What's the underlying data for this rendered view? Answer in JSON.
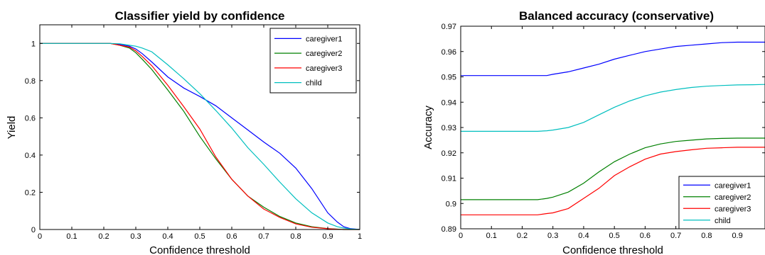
{
  "chart_data": [
    {
      "type": "line",
      "title": "Classifier yield by confidence",
      "xlabel": "Confidence threshold",
      "ylabel": "Yield",
      "xlim": [
        0,
        1
      ],
      "ylim": [
        0,
        1.1
      ],
      "xticks": [
        "0",
        "0.1",
        "0.2",
        "0.3",
        "0.4",
        "0.5",
        "0.6",
        "0.7",
        "0.8",
        "0.9",
        "1"
      ],
      "xtick_values": [
        0,
        0.1,
        0.2,
        0.3,
        0.4,
        0.5,
        0.6,
        0.7,
        0.8,
        0.9,
        1
      ],
      "yticks": [
        "0",
        "0.2",
        "0.4",
        "0.6",
        "0.8",
        "1"
      ],
      "ytick_values": [
        0,
        0.2,
        0.4,
        0.6,
        0.8,
        1
      ],
      "grid": false,
      "legend_position": "top-right",
      "x": [
        0,
        0.05,
        0.1,
        0.15,
        0.2,
        0.22,
        0.25,
        0.28,
        0.3,
        0.32,
        0.35,
        0.4,
        0.45,
        0.5,
        0.55,
        0.6,
        0.65,
        0.7,
        0.75,
        0.8,
        0.85,
        0.9,
        0.93,
        0.95,
        0.97,
        1
      ],
      "series": [
        {
          "name": "caregiver1",
          "color": "#0000ff",
          "values": [
            1,
            1,
            1,
            1,
            1,
            1,
            0.995,
            0.985,
            0.97,
            0.945,
            0.9,
            0.82,
            0.76,
            0.715,
            0.665,
            0.6,
            0.535,
            0.47,
            0.41,
            0.33,
            0.22,
            0.09,
            0.04,
            0.015,
            0.005,
            0
          ]
        },
        {
          "name": "caregiver2",
          "color": "#008000",
          "values": [
            1,
            1,
            1,
            1,
            1,
            1,
            0.99,
            0.975,
            0.95,
            0.915,
            0.86,
            0.75,
            0.635,
            0.5,
            0.38,
            0.27,
            0.18,
            0.12,
            0.07,
            0.035,
            0.015,
            0.005,
            0.002,
            0,
            0,
            0
          ]
        },
        {
          "name": "caregiver3",
          "color": "#ff0000",
          "values": [
            1,
            1,
            1,
            1,
            1,
            1,
            0.99,
            0.98,
            0.96,
            0.93,
            0.88,
            0.775,
            0.66,
            0.54,
            0.39,
            0.27,
            0.18,
            0.11,
            0.065,
            0.03,
            0.012,
            0.004,
            0.001,
            0,
            0,
            0
          ]
        },
        {
          "name": "child",
          "color": "#00bfbf",
          "values": [
            1,
            1,
            1,
            1,
            1,
            1,
            0.998,
            0.99,
            0.985,
            0.975,
            0.955,
            0.885,
            0.81,
            0.73,
            0.64,
            0.545,
            0.44,
            0.35,
            0.255,
            0.165,
            0.09,
            0.035,
            0.015,
            0.008,
            0.003,
            0
          ]
        }
      ]
    },
    {
      "type": "line",
      "title": "Balanced accuracy (conservative)",
      "xlabel": "Confidence threshold",
      "ylabel": "Accuracy",
      "xlim": [
        0,
        0.99
      ],
      "ylim": [
        0.89,
        0.97
      ],
      "xticks": [
        "0",
        "0.1",
        "0.2",
        "0.3",
        "0.4",
        "0.5",
        "0.6",
        "0.7",
        "0.8",
        "0.9"
      ],
      "xtick_values": [
        0,
        0.1,
        0.2,
        0.3,
        0.4,
        0.5,
        0.6,
        0.7,
        0.8,
        0.9
      ],
      "yticks": [
        "0.89",
        "0.9",
        "0.91",
        "0.92",
        "0.93",
        "0.94",
        "0.95",
        "0.96",
        "0.97"
      ],
      "ytick_values": [
        0.89,
        0.9,
        0.91,
        0.92,
        0.93,
        0.94,
        0.95,
        0.96,
        0.97
      ],
      "grid": false,
      "legend_position": "bottom-right",
      "x": [
        0,
        0.1,
        0.2,
        0.25,
        0.28,
        0.3,
        0.35,
        0.4,
        0.45,
        0.5,
        0.55,
        0.6,
        0.65,
        0.7,
        0.75,
        0.8,
        0.85,
        0.9,
        0.95,
        0.99
      ],
      "series": [
        {
          "name": "caregiver1",
          "color": "#0000ff",
          "values": [
            0.9505,
            0.9505,
            0.9505,
            0.9505,
            0.9505,
            0.951,
            0.952,
            0.9535,
            0.955,
            0.957,
            0.9585,
            0.96,
            0.961,
            0.962,
            0.9625,
            0.963,
            0.9635,
            0.9637,
            0.9637,
            0.9637
          ]
        },
        {
          "name": "caregiver2",
          "color": "#008000",
          "values": [
            0.9015,
            0.9015,
            0.9015,
            0.9015,
            0.902,
            0.9025,
            0.9045,
            0.908,
            0.9125,
            0.9165,
            0.9195,
            0.922,
            0.9235,
            0.9245,
            0.925,
            0.9255,
            0.9257,
            0.9258,
            0.9258,
            0.9258
          ]
        },
        {
          "name": "caregiver3",
          "color": "#ff0000",
          "values": [
            0.8955,
            0.8955,
            0.8955,
            0.8955,
            0.896,
            0.8963,
            0.898,
            0.902,
            0.906,
            0.911,
            0.9145,
            0.9175,
            0.9195,
            0.9205,
            0.9212,
            0.9218,
            0.922,
            0.9222,
            0.9222,
            0.9222
          ]
        },
        {
          "name": "child",
          "color": "#00bfbf",
          "values": [
            0.9285,
            0.9285,
            0.9285,
            0.9285,
            0.9287,
            0.929,
            0.93,
            0.932,
            0.935,
            0.938,
            0.9405,
            0.9425,
            0.944,
            0.945,
            0.9458,
            0.9463,
            0.9466,
            0.9468,
            0.9469,
            0.947
          ]
        }
      ]
    }
  ]
}
